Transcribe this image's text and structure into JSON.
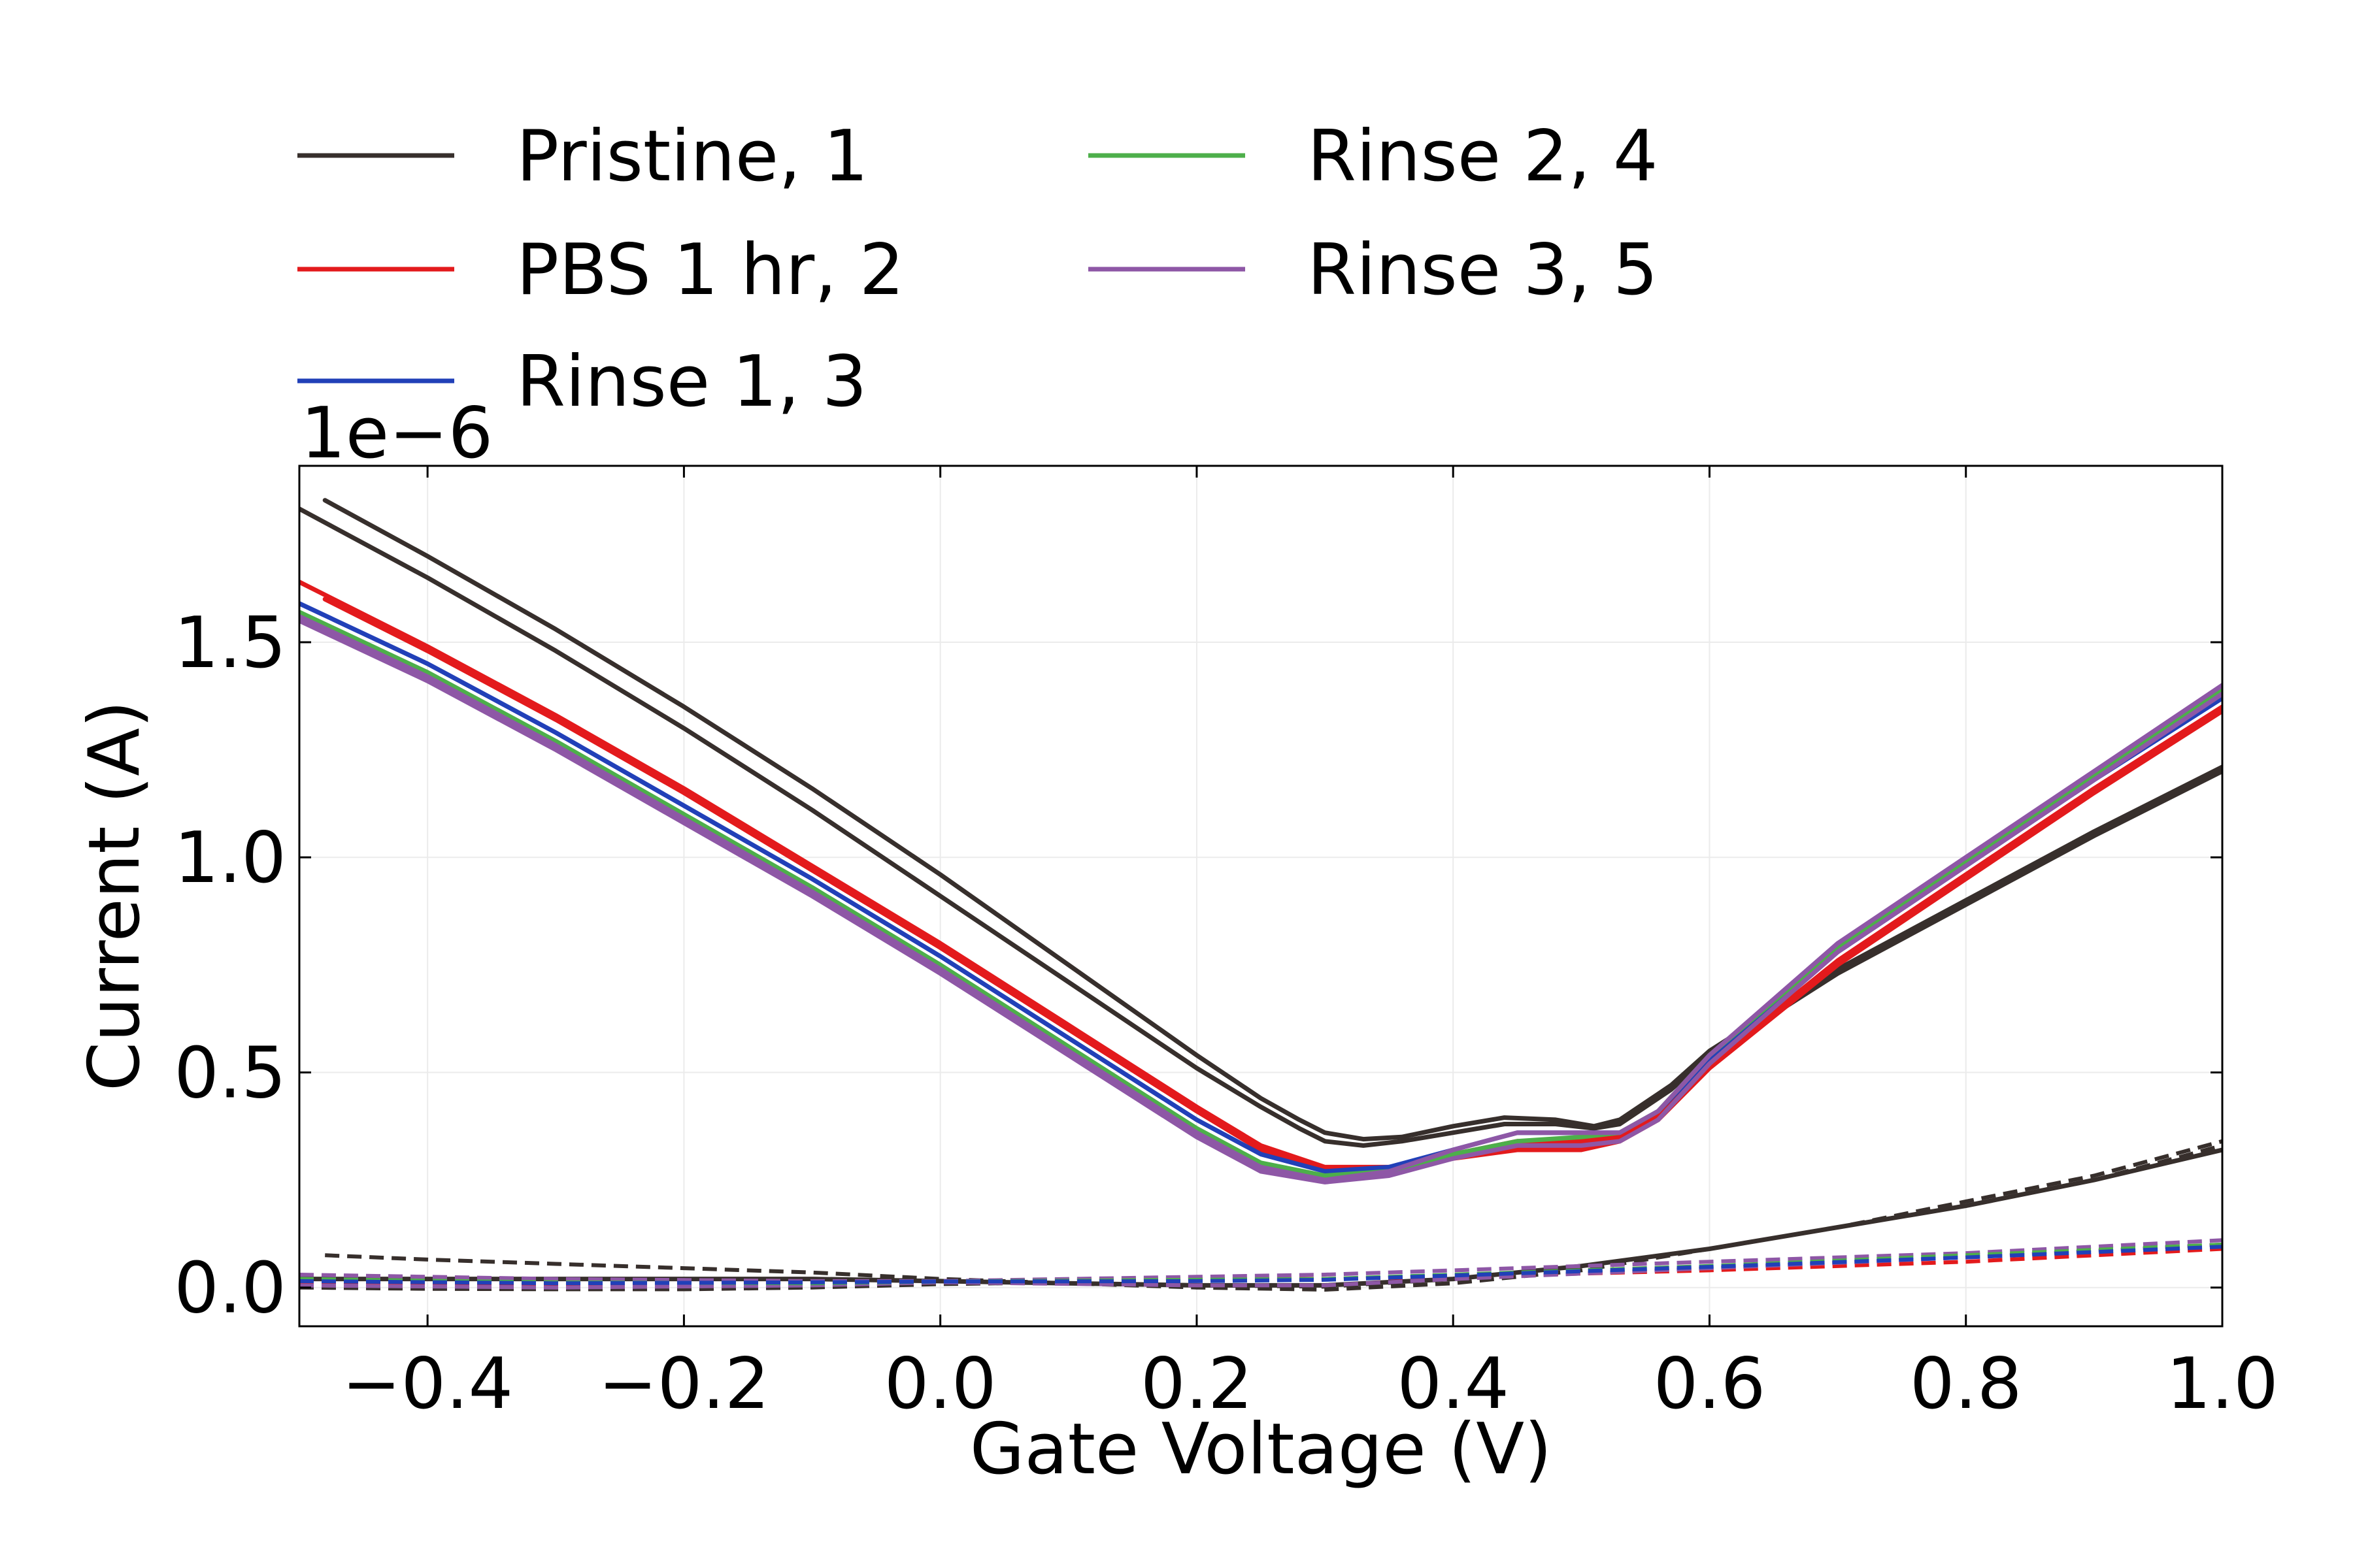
{
  "chart_data": {
    "type": "line",
    "title": "",
    "xlabel": "Gate Voltage (V)",
    "ylabel": "Current (A)",
    "y_offset_label": "1e−6",
    "xlim": [
      -0.5,
      1.0
    ],
    "ylim": [
      -0.09,
      1.91
    ],
    "x_ticks": [
      -0.4,
      -0.2,
      0.0,
      0.2,
      0.4,
      0.6,
      0.8,
      1.0
    ],
    "x_tick_labels": [
      "−0.4",
      "−0.2",
      "0.0",
      "0.2",
      "0.4",
      "0.6",
      "0.8",
      "1.0"
    ],
    "y_ticks": [
      0.0,
      0.5,
      1.0,
      1.5
    ],
    "y_tick_labels": [
      "0.0",
      "0.5",
      "1.0",
      "1.5"
    ],
    "grid": true,
    "legend_placement": "above plot, two columns",
    "legend": [
      {
        "name": "Pristine, 1",
        "color": "#372f2c"
      },
      {
        "name": "PBS 1 hr, 2",
        "color": "#e31a1c"
      },
      {
        "name": "Rinse 1, 3",
        "color": "#2140b8"
      },
      {
        "name": "Rinse 2, 4",
        "color": "#4daf4a"
      },
      {
        "name": "Rinse 3, 5",
        "color": "#8e57a6"
      }
    ],
    "series": [
      {
        "color": "#372f2c",
        "style": "solid",
        "x": [
          -0.5,
          -0.4,
          -0.3,
          -0.2,
          -0.1,
          0.0,
          0.1,
          0.2,
          0.25,
          0.28,
          0.3,
          0.33,
          0.36,
          0.4,
          0.44,
          0.48,
          0.51,
          0.53,
          0.57,
          0.6,
          0.7,
          0.8,
          0.9,
          1.0
        ],
        "y": [
          1.81,
          1.65,
          1.48,
          1.3,
          1.11,
          0.91,
          0.71,
          0.51,
          0.42,
          0.37,
          0.34,
          0.33,
          0.34,
          0.36,
          0.38,
          0.38,
          0.37,
          0.38,
          0.46,
          0.54,
          0.73,
          0.89,
          1.05,
          1.2
        ]
      },
      {
        "color": "#372f2c",
        "style": "solid",
        "x": [
          -0.48,
          -0.4,
          -0.3,
          -0.2,
          -0.1,
          0.0,
          0.1,
          0.2,
          0.25,
          0.28,
          0.3,
          0.33,
          0.36,
          0.4,
          0.44,
          0.48,
          0.51,
          0.53,
          0.57,
          0.6,
          0.7,
          0.8,
          0.9,
          1.0
        ],
        "y": [
          1.83,
          1.7,
          1.53,
          1.35,
          1.16,
          0.96,
          0.75,
          0.54,
          0.44,
          0.39,
          0.36,
          0.345,
          0.35,
          0.375,
          0.395,
          0.39,
          0.375,
          0.39,
          0.47,
          0.55,
          0.74,
          0.9,
          1.06,
          1.21
        ]
      },
      {
        "color": "#e31a1c",
        "style": "solid",
        "x": [
          -0.5,
          -0.4,
          -0.3,
          -0.2,
          -0.1,
          0.0,
          0.1,
          0.2,
          0.25,
          0.3,
          0.35,
          0.4,
          0.45,
          0.5,
          0.53,
          0.56,
          0.6,
          0.7,
          0.8,
          0.9,
          1.0
        ],
        "y": [
          1.64,
          1.49,
          1.33,
          1.16,
          0.98,
          0.8,
          0.61,
          0.42,
          0.33,
          0.28,
          0.28,
          0.31,
          0.34,
          0.34,
          0.35,
          0.4,
          0.52,
          0.76,
          0.96,
          1.16,
          1.35
        ]
      },
      {
        "color": "#e31a1c",
        "style": "solid",
        "x": [
          -0.48,
          -0.4,
          -0.3,
          -0.2,
          -0.1,
          0.0,
          0.1,
          0.2,
          0.25,
          0.3,
          0.35,
          0.4,
          0.45,
          0.5,
          0.53,
          0.56,
          0.6,
          0.7,
          0.8,
          0.9,
          1.0
        ],
        "y": [
          1.6,
          1.48,
          1.32,
          1.15,
          0.97,
          0.79,
          0.6,
          0.41,
          0.32,
          0.27,
          0.27,
          0.3,
          0.32,
          0.32,
          0.34,
          0.39,
          0.51,
          0.75,
          0.95,
          1.15,
          1.34
        ]
      },
      {
        "color": "#2140b8",
        "style": "solid",
        "x": [
          -0.5,
          -0.4,
          -0.3,
          -0.2,
          -0.1,
          0.0,
          0.1,
          0.2,
          0.25,
          0.3,
          0.35,
          0.4,
          0.45,
          0.5,
          0.53,
          0.56,
          0.6,
          0.7,
          0.8,
          0.9,
          1.0
        ],
        "y": [
          1.59,
          1.45,
          1.29,
          1.12,
          0.95,
          0.77,
          0.58,
          0.39,
          0.31,
          0.27,
          0.28,
          0.32,
          0.36,
          0.36,
          0.36,
          0.41,
          0.53,
          0.78,
          0.98,
          1.18,
          1.37
        ]
      },
      {
        "color": "#4daf4a",
        "style": "solid",
        "x": [
          -0.5,
          -0.4,
          -0.3,
          -0.2,
          -0.1,
          0.0,
          0.1,
          0.2,
          0.25,
          0.3,
          0.35,
          0.4,
          0.45,
          0.5,
          0.53,
          0.56,
          0.6,
          0.7,
          0.8,
          0.9,
          1.0
        ],
        "y": [
          1.57,
          1.43,
          1.27,
          1.1,
          0.93,
          0.75,
          0.56,
          0.37,
          0.29,
          0.26,
          0.27,
          0.31,
          0.34,
          0.35,
          0.36,
          0.41,
          0.54,
          0.79,
          0.99,
          1.19,
          1.39
        ]
      },
      {
        "color": "#8e57a6",
        "style": "solid",
        "x": [
          -0.5,
          -0.4,
          -0.3,
          -0.2,
          -0.1,
          0.0,
          0.1,
          0.2,
          0.25,
          0.3,
          0.35,
          0.4,
          0.45,
          0.5,
          0.53,
          0.56,
          0.6,
          0.7,
          0.8,
          0.9,
          1.0
        ],
        "y": [
          1.56,
          1.42,
          1.26,
          1.09,
          0.92,
          0.74,
          0.55,
          0.36,
          0.28,
          0.25,
          0.27,
          0.32,
          0.36,
          0.36,
          0.36,
          0.41,
          0.54,
          0.8,
          1.0,
          1.2,
          1.4
        ]
      },
      {
        "color": "#8e57a6",
        "style": "solid",
        "x": [
          -0.5,
          -0.4,
          -0.3,
          -0.2,
          -0.1,
          0.0,
          0.1,
          0.2,
          0.25,
          0.3,
          0.35,
          0.4,
          0.45,
          0.5,
          0.53,
          0.56,
          0.6,
          0.7,
          0.8,
          0.9,
          1.0
        ],
        "y": [
          1.55,
          1.41,
          1.25,
          1.08,
          0.91,
          0.73,
          0.54,
          0.35,
          0.27,
          0.245,
          0.26,
          0.3,
          0.33,
          0.33,
          0.34,
          0.39,
          0.52,
          0.78,
          0.98,
          1.18,
          1.38
        ]
      },
      {
        "color": "#372f2c",
        "style": "dashed",
        "x": [
          -0.48,
          -0.4,
          -0.3,
          -0.2,
          -0.1,
          0.0,
          0.1,
          0.2,
          0.3,
          0.4,
          0.5,
          0.6,
          0.7,
          0.8,
          0.9,
          1.0
        ],
        "y": [
          0.075,
          0.065,
          0.055,
          0.045,
          0.035,
          0.02,
          0.01,
          0.0,
          -0.005,
          0.01,
          0.04,
          0.09,
          0.14,
          0.19,
          0.25,
          0.33
        ]
      },
      {
        "color": "#372f2c",
        "style": "solid",
        "x": [
          -0.5,
          -0.4,
          -0.3,
          -0.2,
          -0.1,
          0.0,
          0.1,
          0.2,
          0.3,
          0.4,
          0.5,
          0.6,
          0.7,
          0.8,
          0.9,
          1.0
        ],
        "y": [
          0.02,
          0.02,
          0.02,
          0.02,
          0.02,
          0.015,
          0.01,
          0.005,
          0.005,
          0.02,
          0.05,
          0.09,
          0.14,
          0.19,
          0.25,
          0.32
        ]
      },
      {
        "color": "#372f2c",
        "style": "dashed",
        "x": [
          -0.5,
          -0.4,
          -0.3,
          -0.2,
          -0.1,
          0.0,
          0.1,
          0.2,
          0.3,
          0.4,
          0.5,
          0.6,
          0.7,
          0.8,
          0.9,
          1.0
        ],
        "y": [
          0.0,
          -0.003,
          -0.004,
          -0.004,
          0.0,
          0.008,
          0.012,
          0.005,
          0.002,
          0.02,
          0.05,
          0.09,
          0.14,
          0.2,
          0.26,
          0.34
        ]
      },
      {
        "color": "#e31a1c",
        "style": "dashed",
        "x": [
          -0.5,
          -0.3,
          -0.1,
          0.0,
          0.2,
          0.3,
          0.4,
          0.6,
          0.8,
          1.0
        ],
        "y": [
          0.01,
          0.005,
          0.01,
          0.015,
          0.02,
          0.02,
          0.025,
          0.04,
          0.06,
          0.09
        ]
      },
      {
        "color": "#8e57a6",
        "style": "dashed",
        "x": [
          -0.5,
          -0.3,
          -0.1,
          0.0,
          0.2,
          0.3,
          0.4,
          0.6,
          0.8,
          1.0
        ],
        "y": [
          0.03,
          0.02,
          0.015,
          0.015,
          0.025,
          0.03,
          0.04,
          0.06,
          0.08,
          0.11
        ]
      },
      {
        "color": "#8e57a6",
        "style": "dashed",
        "x": [
          -0.5,
          -0.3,
          -0.1,
          0.0,
          0.2,
          0.3,
          0.4,
          0.6,
          0.8,
          1.0
        ],
        "y": [
          0.005,
          0.0,
          0.005,
          0.012,
          0.005,
          0.005,
          0.02,
          0.045,
          0.07,
          0.1
        ]
      },
      {
        "color": "#4daf4a",
        "style": "dashed",
        "x": [
          -0.5,
          -0.3,
          -0.1,
          0.0,
          0.2,
          0.3,
          0.4,
          0.6,
          0.8,
          1.0
        ],
        "y": [
          0.02,
          0.012,
          0.01,
          0.014,
          0.018,
          0.02,
          0.03,
          0.05,
          0.075,
          0.1
        ]
      },
      {
        "color": "#2140b8",
        "style": "dashed",
        "x": [
          -0.5,
          -0.3,
          -0.1,
          0.0,
          0.2,
          0.3,
          0.4,
          0.6,
          0.8,
          1.0
        ],
        "y": [
          0.015,
          0.01,
          0.012,
          0.014,
          0.015,
          0.018,
          0.028,
          0.048,
          0.07,
          0.095
        ]
      }
    ]
  }
}
